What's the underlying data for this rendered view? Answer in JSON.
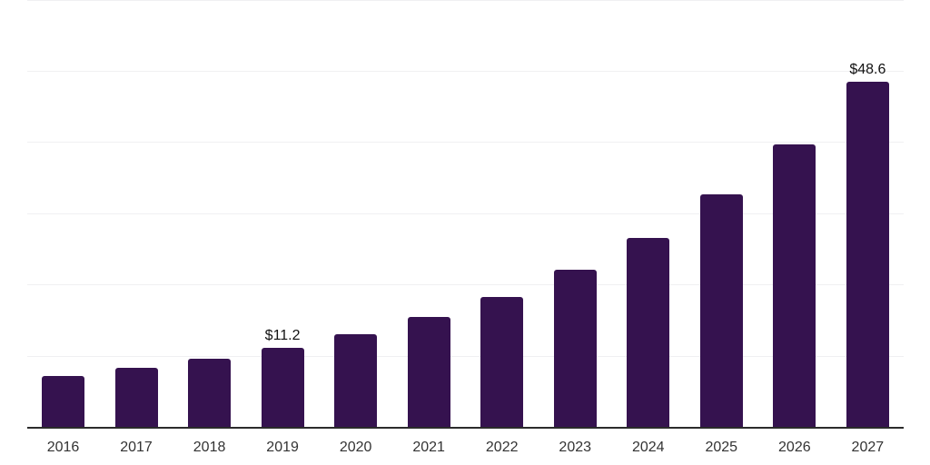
{
  "chart_data": {
    "type": "bar",
    "title": "",
    "xlabel": "",
    "ylabel": "",
    "categories": [
      "2016",
      "2017",
      "2018",
      "2019",
      "2020",
      "2021",
      "2022",
      "2023",
      "2024",
      "2025",
      "2026",
      "2027"
    ],
    "values": [
      7.3,
      8.4,
      9.7,
      11.2,
      13.1,
      15.5,
      18.4,
      22.2,
      26.7,
      32.8,
      39.8,
      48.6
    ],
    "data_labels": [
      "",
      "",
      "",
      "$11.2",
      "",
      "",
      "",
      "",
      "",
      "",
      "",
      "$48.6"
    ],
    "ylim": [
      0,
      60
    ],
    "gridline_step": 10,
    "grid": "horizontal-only",
    "y_axis_tick_labels_visible": false,
    "legend_position": "none",
    "colors": {
      "bar": "#35124F",
      "gridline": "#F0F0F2",
      "axis_line": "#2B2B2B",
      "x_tick_label": "#333333",
      "data_label": "#111111",
      "background": "#FFFFFF"
    }
  }
}
